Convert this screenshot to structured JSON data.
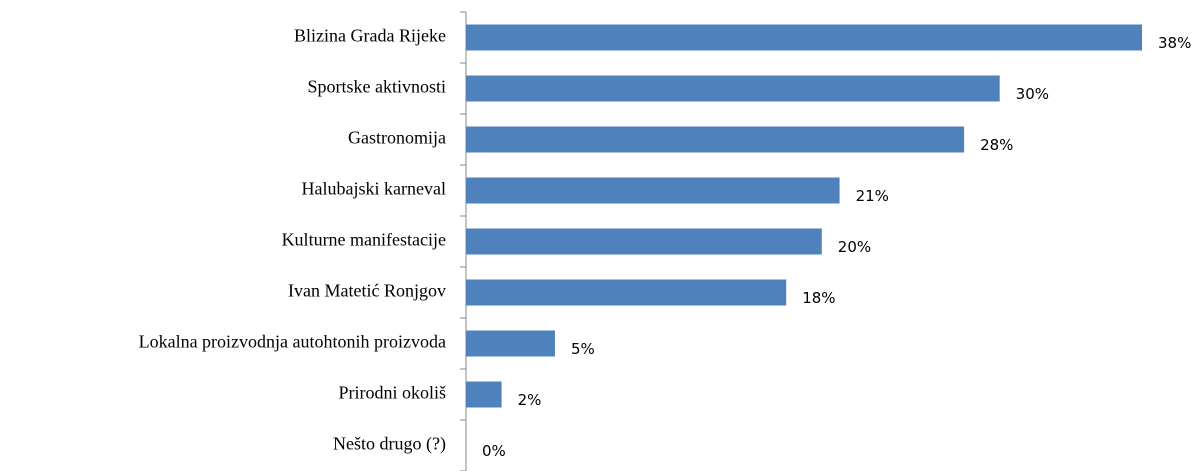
{
  "chart_data": {
    "type": "bar",
    "orientation": "horizontal",
    "categories": [
      "Blizina Grada Rijeke",
      "Sportske aktivnosti",
      "Gastronomija",
      "Halubajski karneval",
      "Kulturne manifestacije",
      "Ivan Matetić Ronjgov",
      "Lokalna proizvodnja autohtonih proizvoda",
      "Prirodni okoliš",
      "Nešto drugo (?)"
    ],
    "values": [
      38,
      30,
      28,
      21,
      20,
      18,
      5,
      2,
      0
    ],
    "value_labels": [
      "38%",
      "30%",
      "28%",
      "21%",
      "20%",
      "18%",
      "5%",
      "2%",
      "0%"
    ],
    "color": "#4f81bd"
  }
}
